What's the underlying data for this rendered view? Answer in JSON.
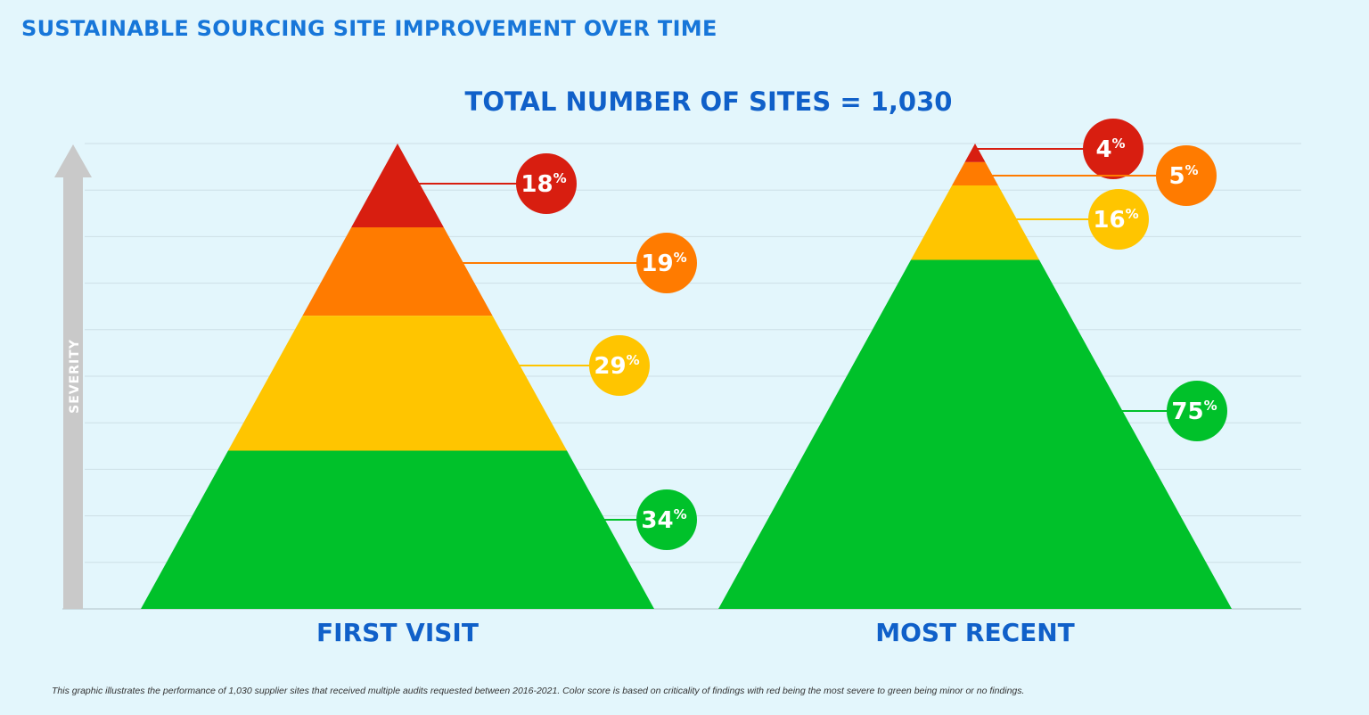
{
  "header": {
    "title": "SUSTAINABLE SOURCING SITE IMPROVEMENT OVER TIME",
    "subtitle": "TOTAL NUMBER OF SITES = 1,030"
  },
  "chart_data": {
    "type": "pyramid",
    "axis_label": "SEVERITY",
    "percent_symbol": "%",
    "series_order_note_top_to_bottom": [
      "red",
      "orange",
      "yellow",
      "green"
    ],
    "colors": {
      "red": "#d81e10",
      "orange": "#ff7b00",
      "yellow": "#ffc500",
      "green": "#00c12a"
    },
    "pyramids": [
      {
        "label": "FIRST VISIT",
        "segments": [
          {
            "color": "red",
            "value": 18
          },
          {
            "color": "orange",
            "value": 19
          },
          {
            "color": "yellow",
            "value": 29
          },
          {
            "color": "green",
            "value": 34
          }
        ]
      },
      {
        "label": "MOST RECENT",
        "segments": [
          {
            "color": "red",
            "value": 4
          },
          {
            "color": "orange",
            "value": 5
          },
          {
            "color": "yellow",
            "value": 16
          },
          {
            "color": "green",
            "value": 75
          }
        ]
      }
    ]
  },
  "footnote": "This graphic illustrates the performance of 1,030 supplier sites that received multiple audits requested between 2016-2021. Color score is based on criticality of findings with red being the most severe to green being minor or no findings."
}
